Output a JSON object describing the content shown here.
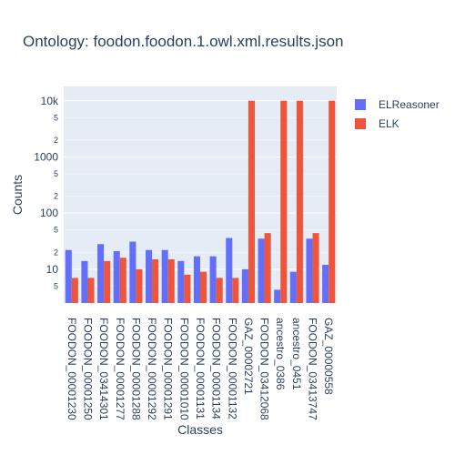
{
  "chart_data": {
    "type": "bar",
    "title": "Ontology: foodon.foodon.1.owl.xml.results.json",
    "xlabel": "Classes",
    "ylabel": "Counts",
    "yscale": "log",
    "ylim": [
      2.5,
      18000
    ],
    "grid": true,
    "legend_position": "top-right",
    "categories": [
      "FOODON_00001230",
      "FOODON_00001250",
      "FOODON_03414301",
      "FOODON_00001277",
      "FOODON_00001288",
      "FOODON_00001292",
      "FOODON_00001291",
      "FOODON_00001010",
      "FOODON_00001131",
      "FOODON_00001134",
      "FOODON_00001132",
      "GAZ_00002721",
      "FOODON_03412068",
      "ancestro_0386",
      "ancestro_0451",
      "FOODON_03413747",
      "GAZ_00000558"
    ],
    "series": [
      {
        "name": "ELReasoner",
        "color": "#636efa",
        "values": [
          22,
          14,
          28,
          21,
          31,
          22,
          22,
          14,
          17,
          17,
          36,
          10,
          35,
          4.3,
          9,
          35,
          12
        ]
      },
      {
        "name": "ELK",
        "color": "#ef553b",
        "values": [
          7,
          7,
          14,
          16,
          10,
          15,
          15,
          8,
          9,
          7,
          7,
          10000,
          44,
          10000,
          10000,
          44,
          10000
        ]
      }
    ],
    "y_major_ticks": [
      {
        "value": 10,
        "label": "10"
      },
      {
        "value": 100,
        "label": "100"
      },
      {
        "value": 1000,
        "label": "1000"
      },
      {
        "value": 10000,
        "label": "10k"
      }
    ],
    "y_minor_ticks": [
      {
        "value": 5,
        "label": "5"
      },
      {
        "value": 20,
        "label": "2"
      },
      {
        "value": 50,
        "label": "5"
      },
      {
        "value": 200,
        "label": "2"
      },
      {
        "value": 500,
        "label": "5"
      },
      {
        "value": 2000,
        "label": "2"
      },
      {
        "value": 5000,
        "label": "5"
      }
    ]
  }
}
